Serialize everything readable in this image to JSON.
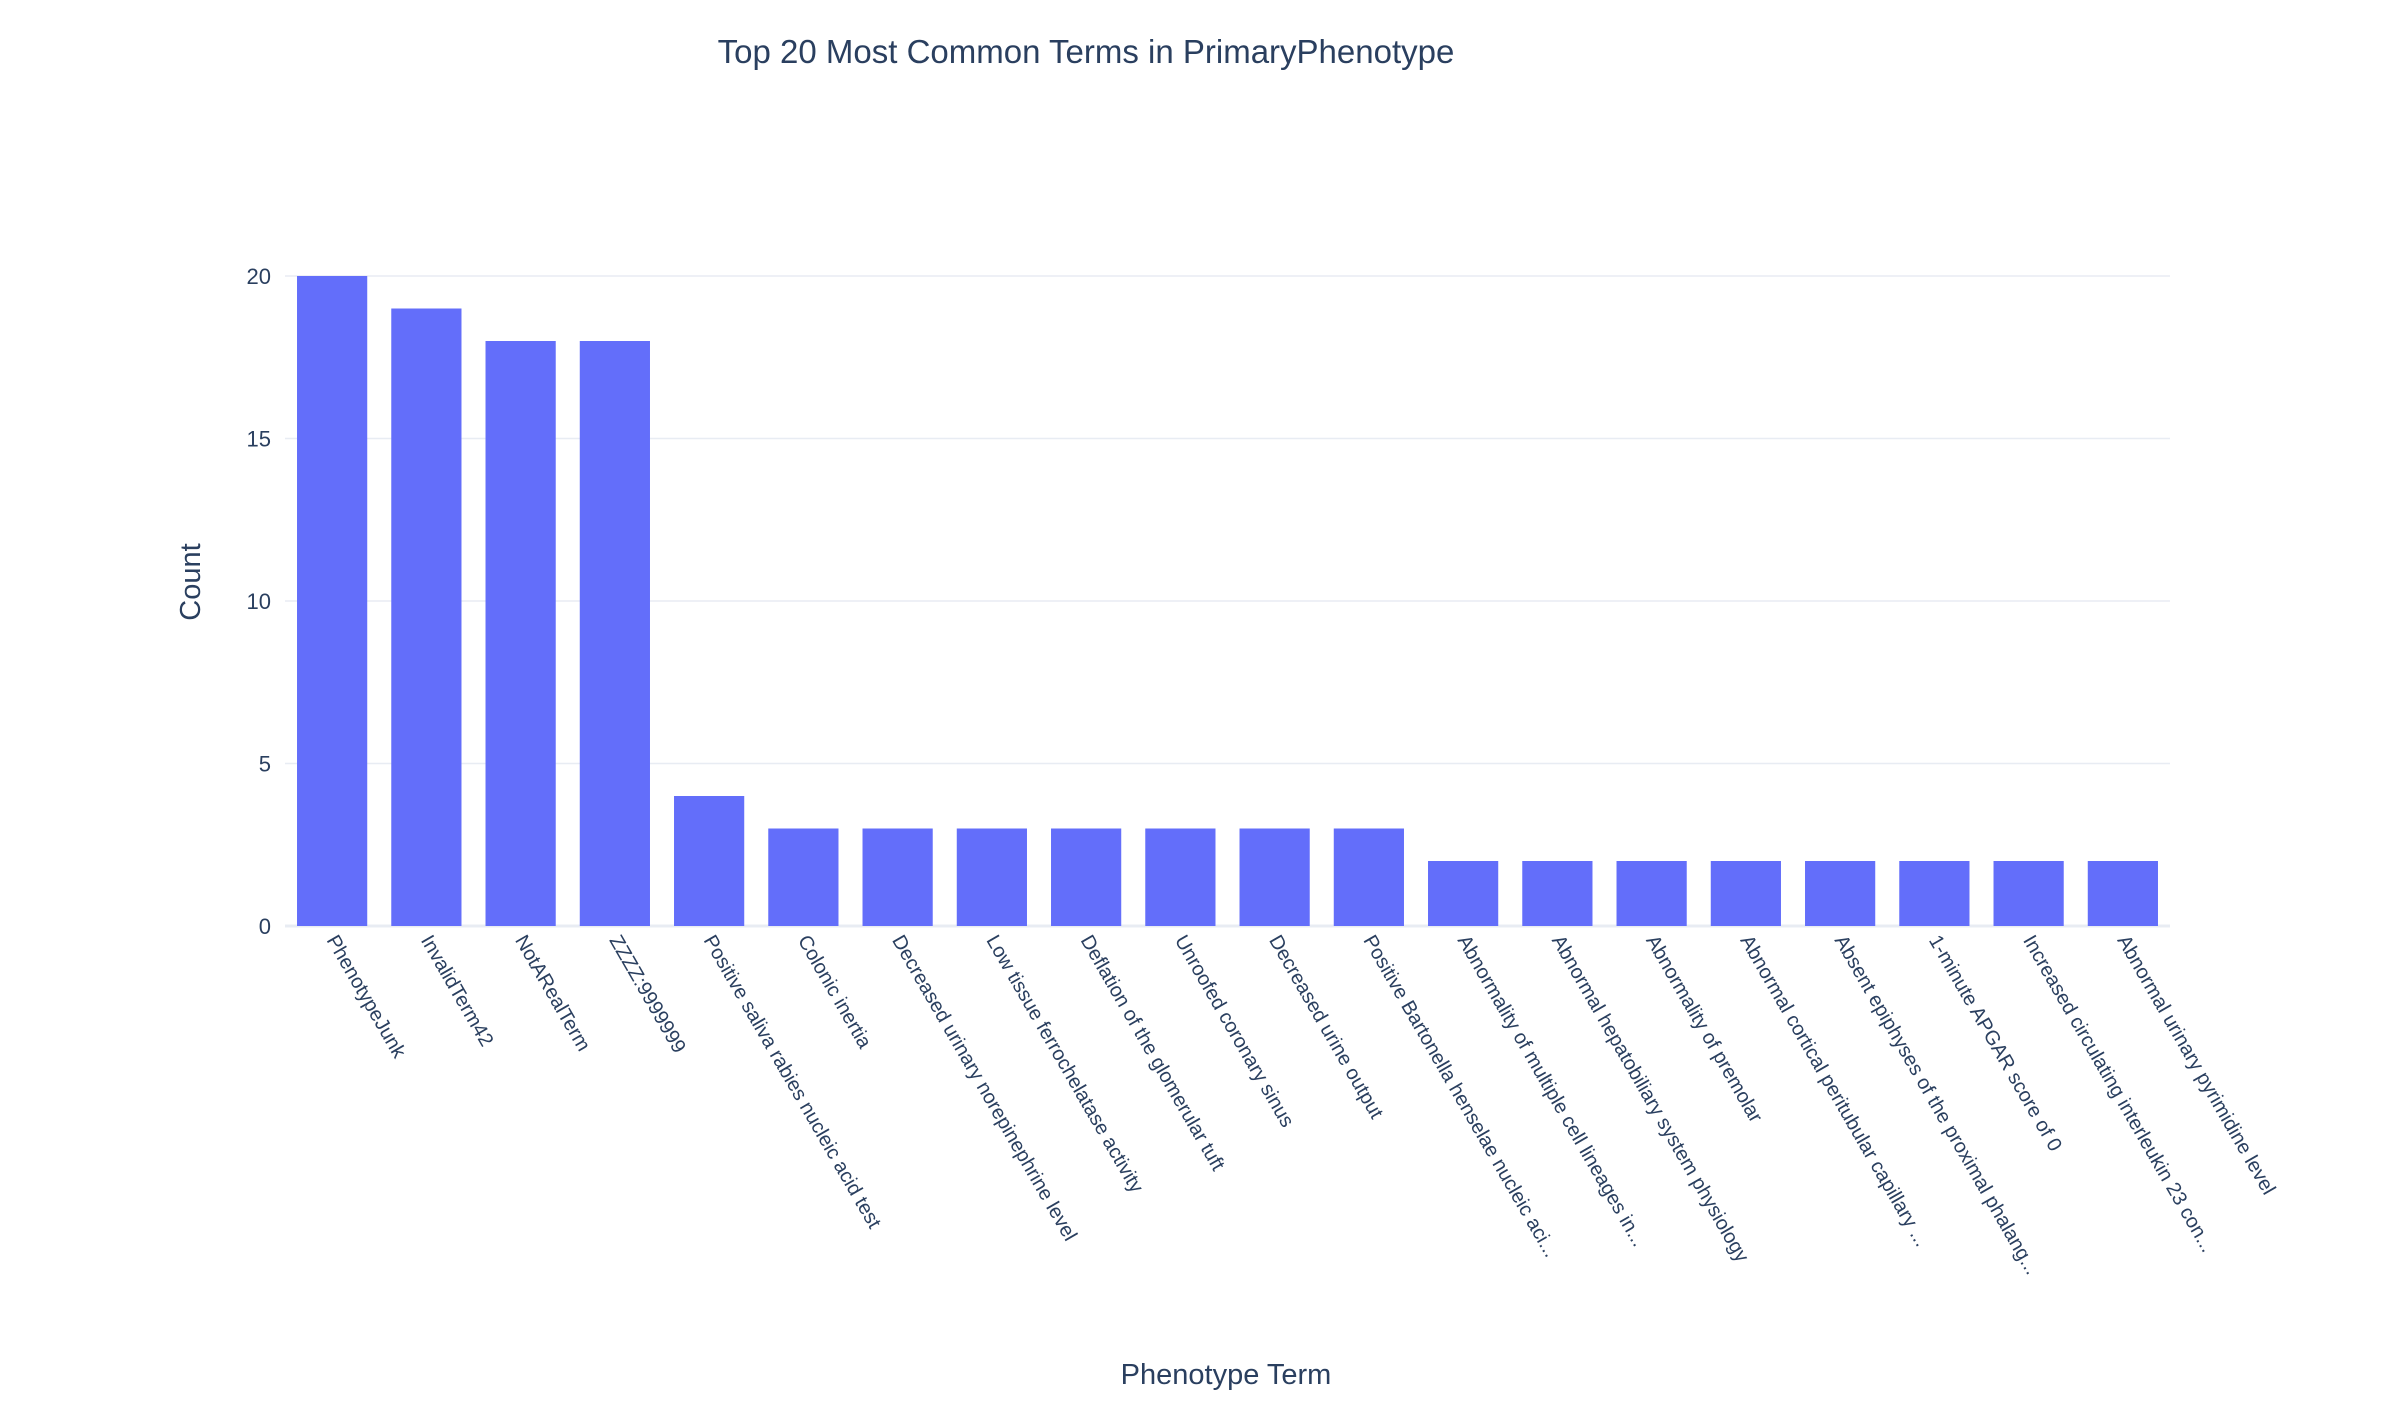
{
  "chart_data": {
    "type": "bar",
    "title": "Top 20 Most Common Terms in PrimaryPhenotype",
    "xlabel": "Phenotype Term",
    "ylabel": "Count",
    "ylim": [
      0,
      20
    ],
    "yticks": [
      0,
      5,
      10,
      15,
      20
    ],
    "grid": true,
    "bar_color": "#636efa",
    "categories": [
      "PhenotypeJunk",
      "InvalidTerm42",
      "NotARealTerm",
      "ZZZZ:9999999",
      "Positive saliva rabies nucleic acid test",
      "Colonic inertia",
      "Decreased urinary norepinephrine level",
      "Low tissue ferrochelatase activity",
      "Deflation of the glomerular tuft",
      "Unroofed coronary sinus",
      "Decreased urine output",
      "Positive Bartonella henselae nucleic aci...",
      "Abnormality of multiple cell lineages in...",
      "Abnormal hepatobiliary system physiology",
      "Abnormality of premolar",
      "Abnormal cortical peritubular capillary ...",
      "Absent epiphyses of the proximal phalang...",
      "1-minute APGAR score of 0",
      "Increased circulating interleukin 23 con...",
      "Abnormal urinary pyrimidine level"
    ],
    "values": [
      20,
      19,
      18,
      18,
      4,
      3,
      3,
      3,
      3,
      3,
      3,
      3,
      2,
      2,
      2,
      2,
      2,
      2,
      2,
      2
    ]
  }
}
